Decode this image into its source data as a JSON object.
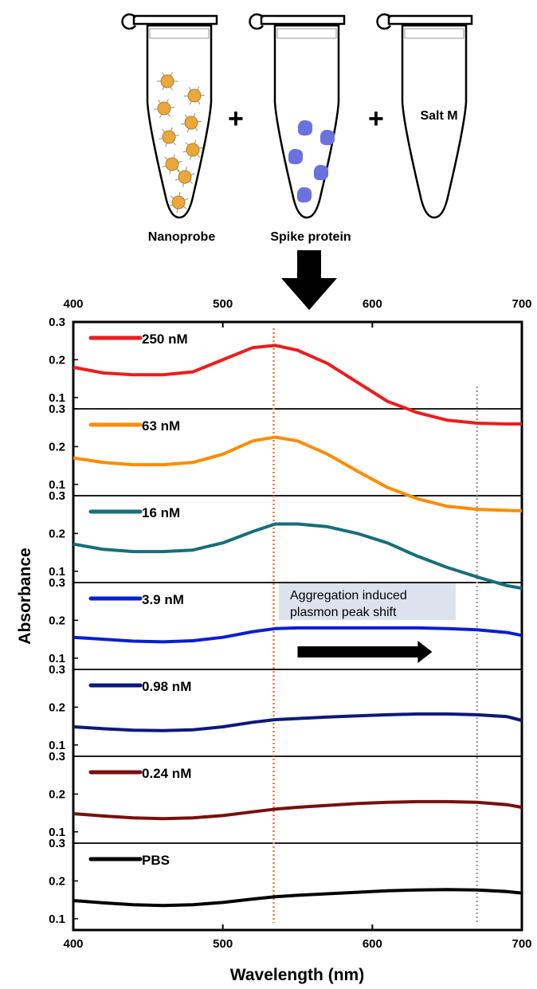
{
  "schematic": {
    "tube_labels": [
      "Nanoprobe",
      "Spike protein",
      "Salt M"
    ],
    "plus_sign": "+",
    "colors": {
      "nanoparticle": "#e8a93a",
      "protein": "#6a72e0",
      "ligand": "#7a9c7a"
    }
  },
  "chart_data": {
    "type": "line",
    "xlabel": "Wavelength (nm)",
    "ylabel": "Absorbance",
    "xlim": [
      400,
      700
    ],
    "x_ticks": [
      400,
      500,
      600,
      700
    ],
    "ylim": [
      0.07,
      0.3
    ],
    "y_ticks": [
      0.1,
      0.2,
      0.3
    ],
    "x": [
      400,
      420,
      440,
      460,
      480,
      500,
      520,
      535,
      550,
      570,
      590,
      610,
      630,
      650,
      670,
      690,
      700
    ],
    "series": [
      {
        "name": "250 nM",
        "color": "#ee1c1c",
        "values": [
          0.18,
          0.165,
          0.16,
          0.16,
          0.168,
          0.2,
          0.232,
          0.238,
          0.225,
          0.19,
          0.14,
          0.09,
          0.06,
          0.04,
          0.032,
          0.03,
          0.03
        ]
      },
      {
        "name": "63 nM",
        "color": "#ff8c00",
        "values": [
          0.17,
          0.158,
          0.152,
          0.152,
          0.158,
          0.18,
          0.215,
          0.225,
          0.215,
          0.18,
          0.135,
          0.092,
          0.062,
          0.042,
          0.034,
          0.031,
          0.03
        ]
      },
      {
        "name": "16 nM",
        "color": "#176e7a",
        "values": [
          0.172,
          0.158,
          0.152,
          0.152,
          0.156,
          0.175,
          0.205,
          0.225,
          0.225,
          0.218,
          0.2,
          0.175,
          0.14,
          0.11,
          0.085,
          0.062,
          0.055
        ]
      },
      {
        "name": "3.9 nM",
        "color": "#0a1ed2",
        "values": [
          0.155,
          0.15,
          0.145,
          0.143,
          0.146,
          0.155,
          0.17,
          0.178,
          0.18,
          0.18,
          0.18,
          0.18,
          0.18,
          0.178,
          0.175,
          0.168,
          0.16
        ]
      },
      {
        "name": "0.98 nM",
        "color": "#0b1a78",
        "values": [
          0.148,
          0.143,
          0.139,
          0.138,
          0.14,
          0.148,
          0.16,
          0.167,
          0.17,
          0.174,
          0.177,
          0.18,
          0.182,
          0.182,
          0.18,
          0.175,
          0.165
        ]
      },
      {
        "name": "0.24 nM",
        "color": "#780f0f",
        "values": [
          0.148,
          0.142,
          0.137,
          0.135,
          0.137,
          0.143,
          0.153,
          0.16,
          0.165,
          0.17,
          0.175,
          0.178,
          0.18,
          0.18,
          0.178,
          0.172,
          0.165
        ]
      },
      {
        "name": "PBS",
        "color": "#000000",
        "values": [
          0.148,
          0.142,
          0.137,
          0.135,
          0.137,
          0.143,
          0.152,
          0.158,
          0.162,
          0.166,
          0.17,
          0.174,
          0.176,
          0.177,
          0.176,
          0.172,
          0.168
        ]
      }
    ],
    "reference_lines": [
      {
        "x": 534,
        "color": "#f07830",
        "style": "dotted"
      },
      {
        "x": 670,
        "color": "#a0a0a0",
        "style": "dotted"
      }
    ],
    "annotation": {
      "lines": [
        "Aggregation induced",
        "plasmon peak shift"
      ],
      "arrow_from_x": 550,
      "arrow_to_x": 640,
      "background": "#dde3ee"
    },
    "legend_placement": "top-left of each panel",
    "grid": false
  }
}
